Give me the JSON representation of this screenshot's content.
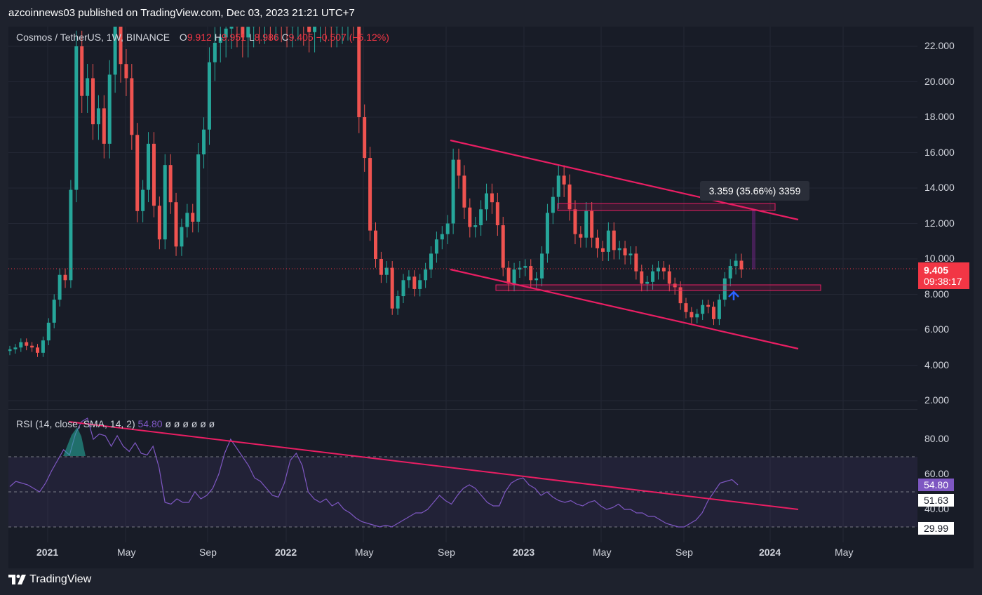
{
  "header": {
    "published": "azcoinnews03 published on TradingView.com, Dec 03, 2023 21:21 UTC+7"
  },
  "legend": {
    "symbol": "Cosmos / TetherUS, 1W, BINANCE",
    "o_label": "O",
    "o_value": "9.912",
    "h_label": "H",
    "h_value": "9.951",
    "l_label": "L",
    "l_value": "8.986",
    "c_label": "C",
    "c_value": "9.405",
    "change": "−0.507 (−5.12%)"
  },
  "rsi_legend": {
    "label": "RSI (14, close, SMA, 14, 2)",
    "value": "54.80",
    "extras": "ø ø ø ø ø ø"
  },
  "price_axis": {
    "labels": [
      "22.000",
      "20.000",
      "18.000",
      "16.000",
      "14.000",
      "12.000",
      "10.000",
      "8.000",
      "6.000",
      "4.000",
      "2.000"
    ]
  },
  "rsi_axis": {
    "labels": [
      "80.00",
      "60.00",
      "40.00"
    ]
  },
  "time_axis": {
    "labels": [
      "2021",
      "May",
      "Sep",
      "2022",
      "May",
      "Sep",
      "2023",
      "May",
      "Sep",
      "2024",
      "May"
    ]
  },
  "price_tag": {
    "price": "9.405",
    "countdown": "09:38:17"
  },
  "rsi_tags": {
    "rsi": "54.80",
    "signal": "51.63",
    "low": "29.99"
  },
  "measure": {
    "label": "3.359 (35.66%) 3359"
  },
  "footer": {
    "brand": "TradingView"
  },
  "colors": {
    "up": "#26a69a",
    "down": "#ef5350",
    "trendline": "#e91e63",
    "rsi_line": "#7e57c2",
    "rsi_band": "#7e57c2",
    "arrow": "#2962ff",
    "background": "#181c27"
  },
  "chart_data": [
    {
      "type": "candlestick",
      "title": "Cosmos / TetherUS, 1W, BINANCE",
      "x_ticks": [
        "2021",
        "May",
        "Sep",
        "2022",
        "May",
        "Sep",
        "2023",
        "May",
        "Sep",
        "2024",
        "May"
      ],
      "ylim": [
        1.0,
        23.5
      ],
      "y_ticks": [
        2,
        4,
        6,
        8,
        10,
        12,
        14,
        16,
        18,
        20,
        22
      ],
      "last": {
        "open": 9.912,
        "high": 9.951,
        "low": 8.986,
        "close": 9.405,
        "change": -0.507,
        "change_pct": -5.12
      },
      "closes": [
        4.9,
        5.0,
        5.3,
        5.1,
        5.0,
        4.7,
        5.4,
        6.4,
        7.7,
        9.1,
        8.8,
        13.9,
        22.0,
        19.2,
        20.2,
        17.6,
        18.5,
        16.5,
        20.4,
        23.5,
        21.0,
        20.2,
        17.0,
        12.7,
        13.9,
        16.5,
        13.0,
        11.1,
        15.3,
        13.2,
        10.7,
        11.8,
        12.6,
        12.1,
        15.9,
        17.3,
        21.1,
        22.2,
        22.5,
        23.0,
        23.2,
        23.1,
        22.5,
        23.1,
        23.5,
        23.3,
        23.6,
        23.5,
        23.6,
        23.4,
        23.1,
        23.5,
        23.6,
        23.2,
        22.8,
        23.4,
        23.5,
        23.4,
        23.1,
        23.3,
        23.5,
        23.6,
        23.5,
        18.0,
        15.7,
        11.6,
        10.0,
        9.1,
        9.5,
        7.2,
        7.9,
        8.8,
        9.0,
        8.3,
        8.8,
        9.4,
        10.3,
        11.1,
        11.4,
        12.0,
        15.6,
        14.7,
        12.9,
        11.8,
        11.9,
        12.8,
        13.7,
        13.2,
        11.9,
        9.5,
        8.6,
        9.4,
        9.5,
        9.6,
        8.8,
        8.9,
        10.3,
        12.6,
        13.5,
        14.7,
        14.2,
        12.8,
        11.4,
        11.2,
        12.7,
        11.2,
        10.6,
        10.4,
        11.6,
        10.5,
        10.6,
        10.2,
        10.3,
        9.3,
        8.6,
        8.7,
        9.3,
        9.5,
        9.3,
        8.6,
        8.4,
        7.5,
        7.0,
        6.7,
        6.9,
        7.4,
        7.3,
        6.6,
        7.7,
        8.9,
        9.6,
        9.9,
        9.405
      ]
    },
    {
      "type": "line",
      "title": "RSI (14, close, SMA, 14, 2)",
      "series": [
        {
          "name": "RSI",
          "values": [
            53,
            56,
            55,
            54,
            52,
            50,
            55,
            62,
            68,
            74,
            71,
            83,
            90,
            92,
            80,
            83,
            82,
            76,
            82,
            76,
            73,
            78,
            72,
            71,
            76,
            64,
            44,
            43,
            46,
            44,
            44,
            50,
            46,
            48,
            52,
            60,
            72,
            80,
            75,
            70,
            65,
            58,
            56,
            52,
            48,
            47,
            55,
            68,
            72,
            65,
            50,
            46,
            44,
            46,
            42,
            44,
            40,
            38,
            35,
            33,
            32,
            31,
            30,
            31,
            30,
            32,
            34,
            36,
            38,
            38,
            40,
            44,
            48,
            45,
            43,
            48,
            52,
            54,
            52,
            48,
            44,
            42,
            42,
            50,
            55,
            57,
            58,
            54,
            52,
            48,
            50,
            47,
            45,
            44,
            45,
            43,
            42,
            44,
            45,
            42,
            40,
            41,
            43,
            40,
            40,
            38,
            38,
            36,
            36,
            34,
            32,
            31,
            30,
            30,
            32,
            34,
            38,
            45,
            50,
            55,
            56,
            57,
            54
          ]
        }
      ],
      "ylim": [
        10,
        100
      ],
      "y_ticks": [
        40,
        60,
        80
      ],
      "bands": {
        "upper": 70,
        "middle": 50,
        "lower": 30
      },
      "last_value": 54.8,
      "signal_value": 51.63
    }
  ]
}
